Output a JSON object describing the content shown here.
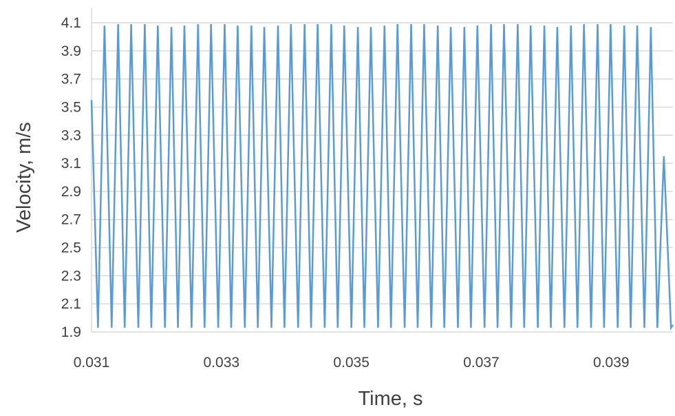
{
  "chart_data": {
    "type": "line",
    "title": "",
    "xlabel": "Time, s",
    "ylabel": "Velocity, m/s",
    "xlim": [
      0.031,
      0.03995
    ],
    "ylim": [
      1.9,
      4.1
    ],
    "x_ticks": [
      "0.031",
      "0.033",
      "0.035",
      "0.037",
      "0.039"
    ],
    "x_tick_values": [
      0.031,
      0.033,
      0.035,
      0.037,
      0.039
    ],
    "y_ticks": [
      "1.9",
      "2.1",
      "2.3",
      "2.5",
      "2.7",
      "2.9",
      "3.1",
      "3.3",
      "3.5",
      "3.7",
      "3.9",
      "4.1"
    ],
    "y_tick_values": [
      1.9,
      2.1,
      2.3,
      2.5,
      2.7,
      2.9,
      3.1,
      3.3,
      3.5,
      3.7,
      3.9,
      4.1
    ],
    "grid": "horizontal",
    "legend": "none",
    "line_color": "#5b9bd5",
    "series": [
      {
        "x": [
          0.031,
          0.0311,
          0.0312,
          0.03131,
          0.03141,
          0.03151,
          0.03161,
          0.03172,
          0.03182,
          0.03192,
          0.03202,
          0.03213,
          0.03223,
          0.03233,
          0.03243,
          0.03254,
          0.03264,
          0.03274,
          0.03284,
          0.03295,
          0.03305,
          0.03315,
          0.03325,
          0.03336,
          0.03346,
          0.03356,
          0.03366,
          0.03377,
          0.03387,
          0.03397,
          0.03407,
          0.03418,
          0.03428,
          0.03438,
          0.03448,
          0.03459,
          0.03469,
          0.03479,
          0.03489,
          0.035,
          0.0351,
          0.0352,
          0.0353,
          0.03541,
          0.03551,
          0.03561,
          0.03571,
          0.03582,
          0.03592,
          0.03602,
          0.03612,
          0.03623,
          0.03633,
          0.03643,
          0.03653,
          0.03664,
          0.03674,
          0.03684,
          0.03694,
          0.03705,
          0.03715,
          0.03725,
          0.03735,
          0.03746,
          0.03756,
          0.03766,
          0.03776,
          0.03787,
          0.03797,
          0.03807,
          0.03817,
          0.03828,
          0.03838,
          0.03848,
          0.03858,
          0.03869,
          0.03879,
          0.03889,
          0.03899,
          0.0391,
          0.0392,
          0.0393,
          0.0394,
          0.03951,
          0.03961,
          0.03971,
          0.03981,
          0.03992,
          0.03995
        ],
        "y": [
          3.55,
          1.93,
          4.08,
          1.93,
          4.09,
          1.93,
          4.09,
          1.93,
          4.09,
          1.93,
          4.08,
          1.93,
          4.07,
          1.93,
          4.08,
          1.93,
          4.09,
          1.93,
          4.09,
          1.93,
          4.09,
          1.93,
          4.08,
          1.93,
          4.08,
          1.93,
          4.07,
          1.93,
          4.08,
          1.93,
          4.09,
          1.93,
          4.09,
          1.93,
          4.09,
          1.93,
          4.09,
          1.93,
          4.08,
          1.93,
          4.07,
          1.93,
          4.07,
          1.93,
          4.08,
          1.93,
          4.09,
          1.93,
          4.09,
          1.93,
          4.09,
          1.93,
          4.08,
          1.93,
          4.07,
          1.93,
          4.07,
          1.93,
          4.08,
          1.93,
          4.09,
          1.93,
          4.09,
          1.93,
          4.09,
          1.93,
          4.08,
          1.93,
          4.08,
          1.93,
          4.07,
          1.93,
          4.08,
          1.93,
          4.09,
          1.93,
          4.09,
          1.93,
          4.09,
          1.93,
          4.08,
          1.93,
          4.08,
          1.93,
          4.07,
          1.93,
          3.15,
          1.93,
          1.95
        ]
      }
    ]
  }
}
